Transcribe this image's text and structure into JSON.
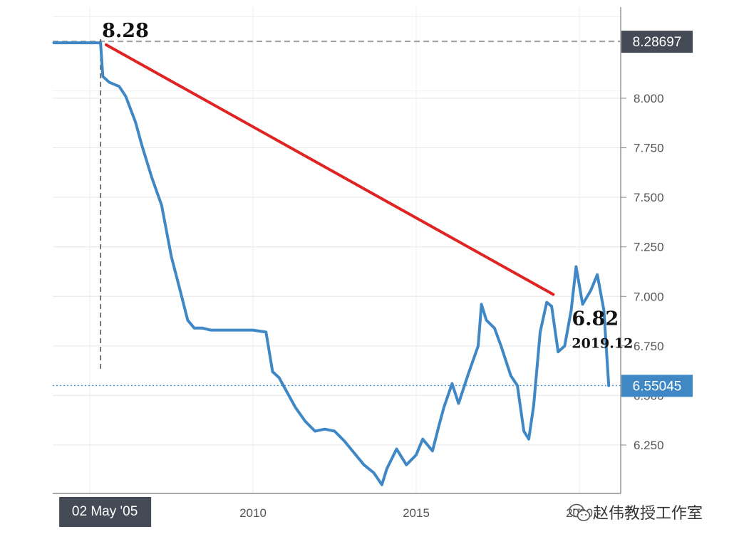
{
  "chart_data": {
    "type": "line",
    "title": "",
    "xlabel": "",
    "ylabel": "",
    "ylim": [
      6.02,
      8.42
    ],
    "y_ticks": [
      "8.000",
      "7.750",
      "7.500",
      "7.250",
      "7.000",
      "6.750",
      "6.500",
      "6.250"
    ],
    "y_tick_values": [
      8.0,
      7.75,
      7.5,
      7.25,
      7.0,
      6.75,
      6.5,
      6.25
    ],
    "x_ticks": [
      "2010",
      "2015",
      "2020"
    ],
    "x_tick_values": [
      2010,
      2015,
      2020
    ],
    "xlim": [
      2003.9,
      2021.3
    ],
    "grid": true,
    "series": [
      {
        "color": "#3f88c5",
        "x": [
          2003.9,
          2004.5,
          2005.0,
          2005.3,
          2005.33,
          2005.4,
          2005.6,
          2005.9,
          2006.1,
          2006.4,
          2006.6,
          2006.9,
          2007.2,
          2007.5,
          2007.8,
          2008.0,
          2008.2,
          2008.45,
          2008.7,
          2009.0,
          2009.3,
          2009.6,
          2010.0,
          2010.4,
          2010.6,
          2010.8,
          2011.0,
          2011.3,
          2011.6,
          2011.9,
          2012.2,
          2012.5,
          2012.8,
          2013.1,
          2013.4,
          2013.7,
          2013.95,
          2014.1,
          2014.4,
          2014.7,
          2015.0,
          2015.2,
          2015.5,
          2015.7,
          2015.85,
          2016.1,
          2016.3,
          2016.6,
          2016.9,
          2017.0,
          2017.15,
          2017.4,
          2017.6,
          2017.9,
          2018.1,
          2018.3,
          2018.45,
          2018.6,
          2018.8,
          2019.0,
          2019.15,
          2019.35,
          2019.55,
          2019.75,
          2019.9,
          2020.1,
          2020.35,
          2020.55,
          2020.75,
          2020.9
        ],
        "values": [
          8.28,
          8.28,
          8.28,
          8.28,
          8.28,
          8.11,
          8.08,
          8.06,
          8.01,
          7.88,
          7.76,
          7.6,
          7.46,
          7.2,
          7.01,
          6.88,
          6.84,
          6.84,
          6.83,
          6.83,
          6.83,
          6.83,
          6.83,
          6.82,
          6.62,
          6.59,
          6.53,
          6.44,
          6.37,
          6.32,
          6.33,
          6.32,
          6.27,
          6.21,
          6.15,
          6.11,
          6.05,
          6.13,
          6.23,
          6.15,
          6.2,
          6.28,
          6.22,
          6.35,
          6.44,
          6.56,
          6.46,
          6.61,
          6.75,
          6.96,
          6.88,
          6.84,
          6.75,
          6.6,
          6.55,
          6.32,
          6.28,
          6.45,
          6.82,
          6.97,
          6.95,
          6.72,
          6.75,
          6.93,
          7.15,
          6.96,
          7.03,
          7.11,
          6.93,
          6.55
        ]
      }
    ],
    "reference_lines": [
      {
        "type": "horizontal",
        "value": 8.28697,
        "label": "8.28697",
        "style": "dashed",
        "color": "#9e9e9e",
        "label_bg": "#454b56"
      },
      {
        "type": "horizontal",
        "value": 6.55045,
        "label": "6.55045",
        "style": "dotted",
        "color": "#4a90d9",
        "label_bg": "#3f88c5"
      },
      {
        "type": "vertical",
        "x": 2005.33,
        "label": "02 May '05",
        "style": "dashed",
        "color": "#333333",
        "label_bg": "#454b56"
      }
    ],
    "trend_line": {
      "color": "#e02424",
      "from": {
        "x": 2005.5,
        "y": 8.27
      },
      "to": {
        "x": 2019.2,
        "y": 7.01
      }
    },
    "annotations": [
      {
        "text": "8.28",
        "x": 2005.33,
        "y": 8.28,
        "size": "large"
      },
      {
        "text": "6.82",
        "x": 2019.2,
        "y": 6.82,
        "size": "large"
      },
      {
        "text": "2019.12",
        "x": 2019.2,
        "y": 6.82,
        "size": "small"
      }
    ]
  },
  "watermark": {
    "text": "赵伟教授工作室",
    "icon": "wechat-icon"
  }
}
